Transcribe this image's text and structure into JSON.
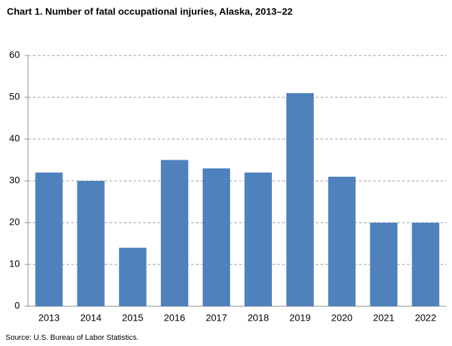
{
  "chart_data": {
    "type": "bar",
    "title": "Chart 1. Number of fatal occupational injuries, Alaska, 2013–22",
    "categories": [
      "2013",
      "2014",
      "2015",
      "2016",
      "2017",
      "2018",
      "2019",
      "2020",
      "2021",
      "2022"
    ],
    "values": [
      32,
      30,
      14,
      35,
      33,
      32,
      51,
      31,
      20,
      20
    ],
    "color": "#4f81bd",
    "ylim": [
      0,
      60
    ],
    "yticks": [
      0,
      10,
      20,
      30,
      40,
      50,
      60
    ],
    "grid": true,
    "source": "Source: U.S. Bureau of Labor Statistics."
  }
}
